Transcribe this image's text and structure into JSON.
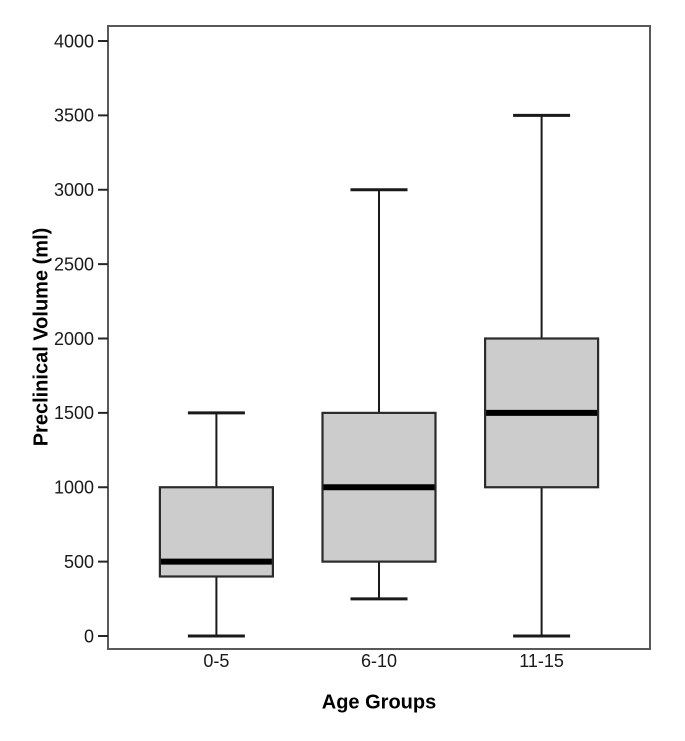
{
  "chart_data": {
    "type": "boxplot",
    "xlabel": "Age Groups",
    "ylabel": "Preclinical Volume (ml)",
    "categories": [
      "0-5",
      "6-10",
      "11-15"
    ],
    "series": [
      {
        "category": "0-5",
        "whisker_low": 0,
        "q1": 400,
        "median": 500,
        "q3": 1000,
        "whisker_high": 1500
      },
      {
        "category": "6-10",
        "whisker_low": 250,
        "q1": 500,
        "median": 1000,
        "q3": 1500,
        "whisker_high": 3000
      },
      {
        "category": "11-15",
        "whisker_low": 0,
        "q1": 1000,
        "median": 1500,
        "q3": 2000,
        "whisker_high": 3500
      }
    ],
    "yticks": [
      0,
      500,
      1000,
      1500,
      2000,
      2500,
      3000,
      3500,
      4000
    ],
    "ylim": [
      0,
      4000
    ],
    "grid": false,
    "legend": false,
    "colors": {
      "box_fill": "#cccccc",
      "box_border": "#2b2b2b",
      "median": "#000000",
      "whisker": "#1a1a1a",
      "frame": "#595959",
      "tick": "#262626",
      "text": "#1a1a1a",
      "background": "#ffffff"
    }
  }
}
